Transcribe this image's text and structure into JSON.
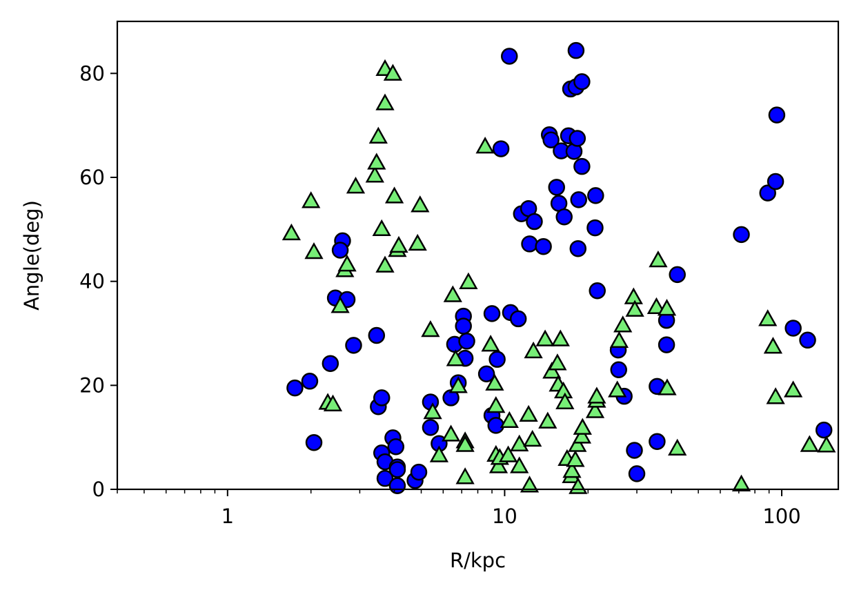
{
  "chart_data": {
    "type": "scatter",
    "title": "",
    "xlabel": "R/kpc",
    "ylabel": "Angle(deg)",
    "xscale": "log",
    "xlim": [
      0.4,
      160
    ],
    "ylim": [
      0,
      90
    ],
    "grid": false,
    "x_ticks": [
      {
        "value": 1,
        "label": "1"
      },
      {
        "value": 10,
        "label": "10"
      },
      {
        "value": 100,
        "label": "100"
      }
    ],
    "y_ticks": [
      {
        "value": 0,
        "label": "0"
      },
      {
        "value": 20,
        "label": "20"
      },
      {
        "value": 40,
        "label": "40"
      },
      {
        "value": 60,
        "label": "60"
      },
      {
        "value": 80,
        "label": "80"
      }
    ],
    "series": [
      {
        "marker": "circle",
        "color": "#0000ff",
        "edgecolor": "#000000",
        "points": [
          [
            1.75,
            19.5
          ],
          [
            1.98,
            20.8
          ],
          [
            2.05,
            9.0
          ],
          [
            2.35,
            24.2
          ],
          [
            2.45,
            36.8
          ],
          [
            2.6,
            47.8
          ],
          [
            2.55,
            46.0
          ],
          [
            2.7,
            36.5
          ],
          [
            2.85,
            27.7
          ],
          [
            3.45,
            29.6
          ],
          [
            3.5,
            15.9
          ],
          [
            3.6,
            17.6
          ],
          [
            3.6,
            7.0
          ],
          [
            3.7,
            5.3
          ],
          [
            3.7,
            2.1
          ],
          [
            3.95,
            9.9
          ],
          [
            4.05,
            8.2
          ],
          [
            4.1,
            4.3
          ],
          [
            4.1,
            3.8
          ],
          [
            4.1,
            0.7
          ],
          [
            4.75,
            1.7
          ],
          [
            4.9,
            3.3
          ],
          [
            5.4,
            16.8
          ],
          [
            5.4,
            11.9
          ],
          [
            5.8,
            8.8
          ],
          [
            6.4,
            17.6
          ],
          [
            6.6,
            27.9
          ],
          [
            6.8,
            20.5
          ],
          [
            7.1,
            33.3
          ],
          [
            7.1,
            31.4
          ],
          [
            7.3,
            28.5
          ],
          [
            7.2,
            25.2
          ],
          [
            8.6,
            22.2
          ],
          [
            9.0,
            33.8
          ],
          [
            9.0,
            14.2
          ],
          [
            9.3,
            12.3
          ],
          [
            9.4,
            25.0
          ],
          [
            9.7,
            65.5
          ],
          [
            10.4,
            83.3
          ],
          [
            10.5,
            34.0
          ],
          [
            11.2,
            32.8
          ],
          [
            11.5,
            53.0
          ],
          [
            12.2,
            54.0
          ],
          [
            12.3,
            47.2
          ],
          [
            12.8,
            51.5
          ],
          [
            13.8,
            46.7
          ],
          [
            14.5,
            68.2
          ],
          [
            14.7,
            67.2
          ],
          [
            15.4,
            58.1
          ],
          [
            15.7,
            55.0
          ],
          [
            16.0,
            65.1
          ],
          [
            16.4,
            52.4
          ],
          [
            17.0,
            68.0
          ],
          [
            17.3,
            77.0
          ],
          [
            17.8,
            65.0
          ],
          [
            18.1,
            77.4
          ],
          [
            18.1,
            84.4
          ],
          [
            18.3,
            67.5
          ],
          [
            18.4,
            46.3
          ],
          [
            18.5,
            55.7
          ],
          [
            19.0,
            62.1
          ],
          [
            19.0,
            78.4
          ],
          [
            21.2,
            50.3
          ],
          [
            21.3,
            56.5
          ],
          [
            21.6,
            38.2
          ],
          [
            25.7,
            26.8
          ],
          [
            25.8,
            23.0
          ],
          [
            27.0,
            17.9
          ],
          [
            29.4,
            7.5
          ],
          [
            30.0,
            3.0
          ],
          [
            35.5,
            19.8
          ],
          [
            35.5,
            9.2
          ],
          [
            38.4,
            32.5
          ],
          [
            38.4,
            27.8
          ],
          [
            42.0,
            41.3
          ],
          [
            71.5,
            49.0
          ],
          [
            89.0,
            57.0
          ],
          [
            95.0,
            59.2
          ],
          [
            96.0,
            72.0
          ],
          [
            110.0,
            31.0
          ],
          [
            124.0,
            28.7
          ],
          [
            142.0,
            11.4
          ]
        ]
      },
      {
        "marker": "triangle",
        "color": "#77ee77",
        "edgecolor": "#000000",
        "points": [
          [
            1.7,
            49.2
          ],
          [
            2.0,
            55.4
          ],
          [
            2.05,
            45.6
          ],
          [
            2.3,
            16.6
          ],
          [
            2.4,
            16.3
          ],
          [
            2.55,
            35.2
          ],
          [
            2.65,
            42.1
          ],
          [
            2.7,
            43.2
          ],
          [
            2.9,
            58.2
          ],
          [
            3.4,
            60.3
          ],
          [
            3.45,
            62.8
          ],
          [
            3.5,
            67.8
          ],
          [
            3.6,
            50.0
          ],
          [
            3.7,
            43.0
          ],
          [
            3.7,
            74.2
          ],
          [
            3.7,
            80.8
          ],
          [
            3.95,
            79.9
          ],
          [
            4.0,
            56.3
          ],
          [
            4.1,
            46.0
          ],
          [
            4.15,
            46.8
          ],
          [
            4.85,
            47.2
          ],
          [
            4.95,
            54.6
          ],
          [
            5.4,
            30.6
          ],
          [
            5.5,
            14.8
          ],
          [
            5.8,
            6.5
          ],
          [
            6.4,
            10.5
          ],
          [
            6.5,
            37.3
          ],
          [
            6.65,
            25.0
          ],
          [
            6.8,
            19.8
          ],
          [
            7.2,
            9.2
          ],
          [
            7.2,
            8.5
          ],
          [
            7.2,
            2.3
          ],
          [
            7.4,
            39.8
          ],
          [
            8.5,
            65.9
          ],
          [
            8.9,
            27.8
          ],
          [
            9.2,
            20.3
          ],
          [
            9.3,
            16.0
          ],
          [
            9.3,
            6.6
          ],
          [
            9.5,
            4.4
          ],
          [
            9.6,
            6.0
          ],
          [
            10.3,
            6.5
          ],
          [
            10.4,
            13.1
          ],
          [
            11.3,
            4.4
          ],
          [
            11.3,
            8.6
          ],
          [
            12.2,
            14.3
          ],
          [
            12.3,
            0.7
          ],
          [
            12.6,
            9.5
          ],
          [
            12.7,
            26.5
          ],
          [
            14.0,
            28.8
          ],
          [
            14.3,
            13.0
          ],
          [
            14.8,
            22.6
          ],
          [
            15.5,
            24.2
          ],
          [
            15.6,
            20.1
          ],
          [
            15.9,
            28.8
          ],
          [
            16.3,
            18.8
          ],
          [
            16.5,
            16.7
          ],
          [
            16.8,
            5.8
          ],
          [
            17.4,
            2.5
          ],
          [
            17.5,
            3.5
          ],
          [
            18.0,
            5.6
          ],
          [
            18.3,
            8.5
          ],
          [
            18.4,
            0.4
          ],
          [
            19.0,
            10.1
          ],
          [
            19.1,
            11.8
          ],
          [
            21.2,
            15.0
          ],
          [
            21.5,
            17.0
          ],
          [
            21.5,
            17.8
          ],
          [
            25.5,
            19.0
          ],
          [
            25.9,
            28.5
          ],
          [
            26.7,
            31.5
          ],
          [
            29.2,
            36.9
          ],
          [
            29.5,
            34.5
          ],
          [
            35.3,
            35.0
          ],
          [
            35.8,
            44.0
          ],
          [
            38.5,
            34.7
          ],
          [
            38.6,
            19.4
          ],
          [
            42.0,
            7.8
          ],
          [
            71.5,
            0.9
          ],
          [
            89.0,
            32.7
          ],
          [
            93.0,
            27.4
          ],
          [
            95.0,
            17.7
          ],
          [
            110.0,
            19.0
          ],
          [
            126.0,
            8.5
          ],
          [
            145.0,
            8.4
          ]
        ]
      }
    ]
  }
}
